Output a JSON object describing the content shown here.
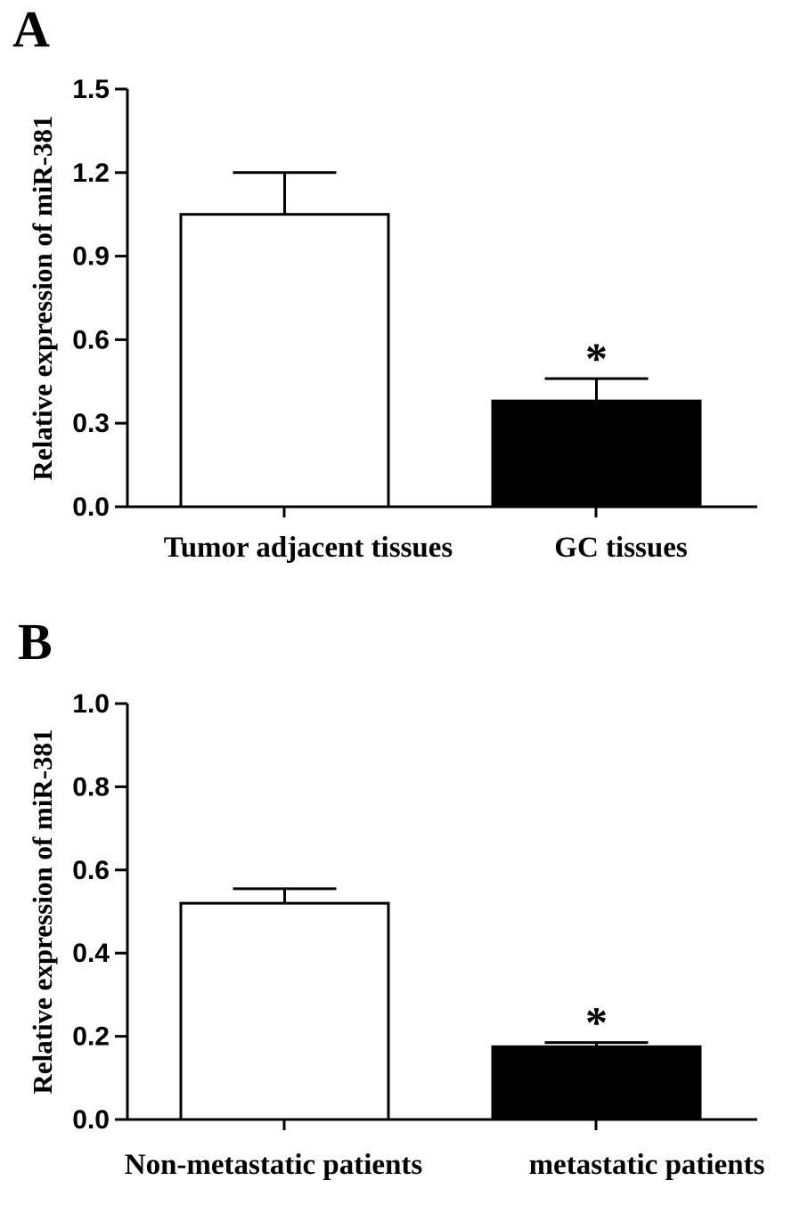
{
  "chart_data": [
    {
      "type": "bar",
      "panel": "A",
      "categories": [
        "Tumor adjacent tissues",
        "GC tissues"
      ],
      "values": [
        1.05,
        0.38
      ],
      "errors": [
        0.15,
        0.08
      ],
      "fills": [
        "#ffffff",
        "#000000"
      ],
      "significance": [
        "",
        "*"
      ],
      "ylabel": "Relative expression of miR-381",
      "xlabel": "",
      "ylim": [
        0,
        1.5
      ],
      "yticks": [
        "0.0",
        "0.3",
        "0.6",
        "0.9",
        "1.2",
        "1.5"
      ],
      "grid": false
    },
    {
      "type": "bar",
      "panel": "B",
      "categories": [
        "Non-metastatic patients",
        "metastatic patients"
      ],
      "values": [
        0.52,
        0.175
      ],
      "errors": [
        0.035,
        0.01
      ],
      "fills": [
        "#ffffff",
        "#000000"
      ],
      "significance": [
        "",
        "*"
      ],
      "ylabel": "Relative expression of miR-381",
      "xlabel": "",
      "ylim": [
        0,
        1.0
      ],
      "yticks": [
        "0.0",
        "0.2",
        "0.4",
        "0.6",
        "0.8",
        "1.0"
      ],
      "grid": false
    }
  ],
  "colors": {
    "axis": "#000000",
    "bar_stroke": "#000000"
  }
}
